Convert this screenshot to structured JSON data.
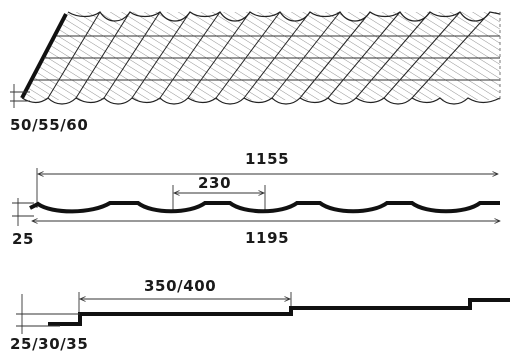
{
  "labels": {
    "top_height": "50/55/60",
    "top_width": "1155",
    "wave_pitch": "230",
    "profile_height": "25",
    "full_width": "1195",
    "step_length": "350/400",
    "step_height": "25/30/35"
  },
  "colors": {
    "line": "#111111",
    "text": "#1a1a1a",
    "background": "#ffffff"
  }
}
